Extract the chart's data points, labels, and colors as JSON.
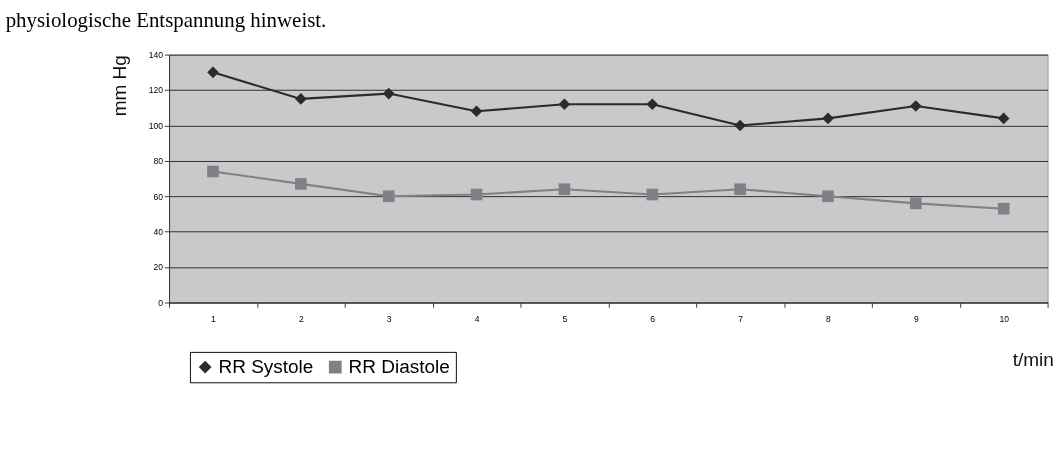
{
  "chart_data": {
    "type": "line",
    "annotations": [
      "physiologische Entspannung hinweist."
    ],
    "xlabel": "t/min",
    "ylabel": "mm Hg",
    "categories": [
      "1",
      "2",
      "3",
      "4",
      "5",
      "6",
      "7",
      "8",
      "9",
      "10"
    ],
    "series": [
      {
        "name": "RR Systole",
        "color": "#2b2b2b",
        "marker": "diamond",
        "values": [
          130,
          115,
          118,
          108,
          112,
          112,
          100,
          104,
          111,
          104
        ]
      },
      {
        "name": "RR Diastole",
        "color": "#808185",
        "marker": "square",
        "values": [
          74,
          67,
          60,
          61,
          64,
          61,
          64,
          60,
          56,
          53
        ]
      }
    ],
    "ylim": [
      0,
      140
    ],
    "yticks": [
      0,
      20,
      40,
      60,
      80,
      100,
      120,
      140
    ],
    "grid": "y",
    "legend": "bottom left",
    "line_style": "solid"
  }
}
